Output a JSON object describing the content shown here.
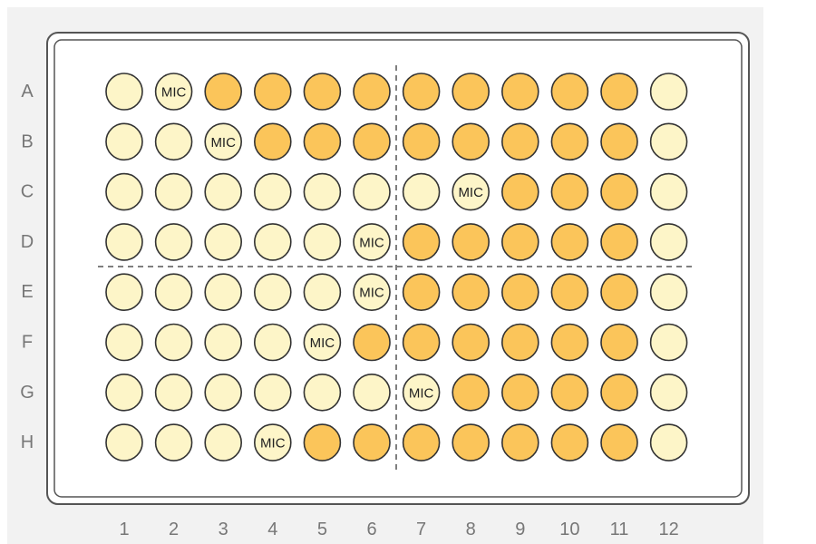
{
  "plate": {
    "row_labels": [
      "A",
      "B",
      "C",
      "D",
      "E",
      "F",
      "G",
      "H"
    ],
    "column_labels": [
      "1",
      "2",
      "3",
      "4",
      "5",
      "6",
      "7",
      "8",
      "9",
      "10",
      "11",
      "12"
    ],
    "marker_text": "MIC",
    "colors": {
      "panel_background": "#f2f2f2",
      "plate_fill": "#ffffff",
      "plate_border": "#555555",
      "well_outline": "#333333",
      "label_text": "#777777",
      "divider": "#555555",
      "well_clear": "#fdf5c8",
      "well_mid": "#fbd77a",
      "well_turbid": "#fbc55a"
    },
    "wells": [
      [
        "clear",
        "clear",
        "turbid",
        "turbid",
        "turbid",
        "turbid",
        "turbid",
        "turbid",
        "turbid",
        "turbid",
        "turbid",
        "clear"
      ],
      [
        "clear",
        "clear",
        "clear",
        "turbid",
        "turbid",
        "turbid",
        "turbid",
        "turbid",
        "turbid",
        "turbid",
        "turbid",
        "clear"
      ],
      [
        "clear",
        "clear",
        "clear",
        "clear",
        "clear",
        "clear",
        "clear",
        "clear",
        "turbid",
        "turbid",
        "turbid",
        "clear"
      ],
      [
        "clear",
        "clear",
        "clear",
        "clear",
        "clear",
        "clear",
        "turbid",
        "turbid",
        "turbid",
        "turbid",
        "turbid",
        "clear"
      ],
      [
        "clear",
        "clear",
        "clear",
        "clear",
        "clear",
        "clear",
        "turbid",
        "turbid",
        "turbid",
        "turbid",
        "turbid",
        "clear"
      ],
      [
        "clear",
        "clear",
        "clear",
        "clear",
        "clear",
        "turbid",
        "turbid",
        "turbid",
        "turbid",
        "turbid",
        "turbid",
        "clear"
      ],
      [
        "clear",
        "clear",
        "clear",
        "clear",
        "clear",
        "clear",
        "clear",
        "turbid",
        "turbid",
        "turbid",
        "turbid",
        "clear"
      ],
      [
        "clear",
        "clear",
        "clear",
        "clear",
        "turbid",
        "turbid",
        "turbid",
        "turbid",
        "turbid",
        "turbid",
        "turbid",
        "clear"
      ]
    ],
    "mic_wells": [
      {
        "row": "A",
        "column": "2"
      },
      {
        "row": "B",
        "column": "3"
      },
      {
        "row": "C",
        "column": "8"
      },
      {
        "row": "D",
        "column": "6"
      },
      {
        "row": "E",
        "column": "6"
      },
      {
        "row": "F",
        "column": "5"
      },
      {
        "row": "G",
        "column": "7"
      },
      {
        "row": "H",
        "column": "4"
      }
    ]
  }
}
